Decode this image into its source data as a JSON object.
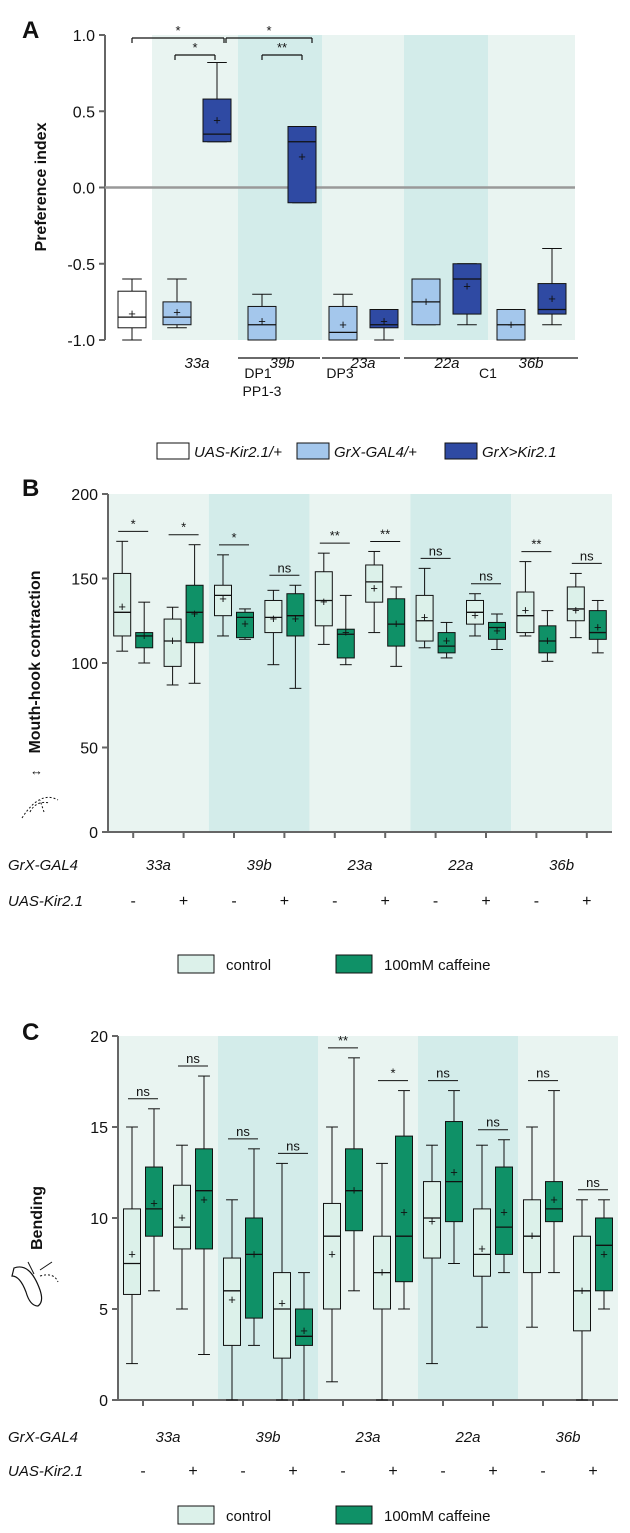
{
  "colors": {
    "band_light": "#e9f4f1",
    "band_dark": "#d3ecea",
    "a_white": "#ffffff",
    "a_light": "#a4c7ec",
    "a_dark": "#2f4aa3",
    "control": "#dcf1ea",
    "caffeine": "#0f9167",
    "axis": "#666666",
    "zero": "#999999"
  },
  "chart_data": [
    {
      "panel": "A",
      "type": "box",
      "ylabel": "Preference index",
      "yticks": [
        "1.0",
        "0.5",
        "0.0",
        "-0.5",
        "-1.0"
      ],
      "ylim": [
        -1.0,
        1.0
      ],
      "reference_line": 0.0,
      "categories": [
        "33a",
        "39b",
        "23a",
        "22a",
        "36b"
      ],
      "groups": [
        {
          "name": "UAS-Kir2.1/+",
          "color": "a_white",
          "min": -1.0,
          "q1": -0.92,
          "median": -0.85,
          "q3": -0.68,
          "max": -0.6,
          "mean": -0.83
        },
        {
          "cat": "33a",
          "name": "GrX-GAL4/+",
          "color": "a_light",
          "min": -0.92,
          "q1": -0.9,
          "median": -0.85,
          "q3": -0.75,
          "max": -0.6,
          "mean": -0.82
        },
        {
          "cat": "33a",
          "name": "GrX>Kir2.1",
          "color": "a_dark",
          "min": 0.3,
          "q1": 0.3,
          "median": 0.35,
          "q3": 0.58,
          "max": 0.82,
          "mean": 0.44
        },
        {
          "cat": "39b",
          "name": "GrX-GAL4/+",
          "color": "a_light",
          "min": -1.0,
          "q1": -1.0,
          "median": -0.9,
          "q3": -0.78,
          "max": -0.7,
          "mean": -0.88
        },
        {
          "cat": "39b",
          "name": "GrX>Kir2.1",
          "color": "a_dark",
          "min": -0.1,
          "q1": -0.1,
          "median": 0.3,
          "q3": 0.4,
          "max": 0.4,
          "mean": 0.2
        },
        {
          "cat": "23a",
          "name": "GrX-GAL4/+",
          "color": "a_light",
          "min": -1.0,
          "q1": -1.0,
          "median": -0.95,
          "q3": -0.78,
          "max": -0.7,
          "mean": -0.9
        },
        {
          "cat": "23a",
          "name": "GrX>Kir2.1",
          "color": "a_dark",
          "min": -1.0,
          "q1": -0.92,
          "median": -0.9,
          "q3": -0.8,
          "max": -0.8,
          "mean": -0.88
        },
        {
          "cat": "22a",
          "name": "GrX-GAL4/+",
          "color": "a_light",
          "min": -0.9,
          "q1": -0.9,
          "median": -0.75,
          "q3": -0.6,
          "max": -0.6,
          "mean": -0.75
        },
        {
          "cat": "22a",
          "name": "GrX>Kir2.1",
          "color": "a_dark",
          "min": -0.9,
          "q1": -0.83,
          "median": -0.6,
          "q3": -0.5,
          "max": -0.5,
          "mean": -0.65
        },
        {
          "cat": "36b",
          "name": "GrX-GAL4/+",
          "color": "a_light",
          "min": -1.0,
          "q1": -1.0,
          "median": -0.9,
          "q3": -0.8,
          "max": -0.8,
          "mean": -0.9
        },
        {
          "cat": "36b",
          "name": "GrX>Kir2.1",
          "color": "a_dark",
          "min": -0.9,
          "q1": -0.83,
          "median": -0.8,
          "q3": -0.63,
          "max": -0.4,
          "mean": -0.73
        }
      ],
      "neuron_groups": [
        "DP1",
        "PP1-3",
        "DP3",
        "C1"
      ],
      "significance": [
        "*",
        "*",
        "*",
        "**"
      ],
      "legend": [
        "UAS-Kir2.1/+",
        "GrX-GAL4/+",
        "GrX>Kir2.1"
      ]
    },
    {
      "panel": "B",
      "type": "box",
      "ylabel": "Mouth-hook contraction",
      "yticks": [
        "200",
        "150",
        "100",
        "50",
        "0"
      ],
      "ylim": [
        0,
        200
      ],
      "row_labels": {
        "gal4": "GrX-GAL4",
        "kir": "UAS-Kir2.1"
      },
      "categories": [
        "33a",
        "39b",
        "23a",
        "22a",
        "36b"
      ],
      "signs": [
        "-",
        "+"
      ],
      "legend": [
        "control",
        "100mM caffeine"
      ],
      "significance": [
        "*",
        "*",
        "*",
        "ns",
        "**",
        "**",
        "ns",
        "ns",
        "**",
        "ns"
      ],
      "boxes": [
        {
          "cat": "33a",
          "kir": "-",
          "control": {
            "min": 107,
            "q1": 116,
            "median": 130,
            "q3": 153,
            "max": 172,
            "mean": 133
          },
          "caffeine": {
            "min": 100,
            "q1": 109,
            "median": 116,
            "q3": 118,
            "max": 136,
            "mean": 116
          }
        },
        {
          "cat": "33a",
          "kir": "+",
          "control": {
            "min": 87,
            "q1": 98,
            "median": 113,
            "q3": 126,
            "max": 133,
            "mean": 113
          },
          "caffeine": {
            "min": 88,
            "q1": 112,
            "median": 130,
            "q3": 146,
            "max": 170,
            "mean": 129
          }
        },
        {
          "cat": "39b",
          "kir": "-",
          "control": {
            "min": 116,
            "q1": 128,
            "median": 140,
            "q3": 146,
            "max": 164,
            "mean": 138
          },
          "caffeine": {
            "min": 114,
            "q1": 115,
            "median": 127,
            "q3": 130,
            "max": 132,
            "mean": 123
          }
        },
        {
          "cat": "39b",
          "kir": "+",
          "control": {
            "min": 99,
            "q1": 118,
            "median": 127,
            "q3": 137,
            "max": 143,
            "mean": 126
          },
          "caffeine": {
            "min": 85,
            "q1": 116,
            "median": 128,
            "q3": 141,
            "max": 146,
            "mean": 126
          }
        },
        {
          "cat": "23a",
          "kir": "-",
          "control": {
            "min": 111,
            "q1": 122,
            "median": 137,
            "q3": 154,
            "max": 165,
            "mean": 136
          },
          "caffeine": {
            "min": 99,
            "q1": 103,
            "median": 117,
            "q3": 120,
            "max": 140,
            "mean": 118
          }
        },
        {
          "cat": "23a",
          "kir": "+",
          "control": {
            "min": 118,
            "q1": 136,
            "median": 148,
            "q3": 158,
            "max": 166,
            "mean": 144
          },
          "caffeine": {
            "min": 98,
            "q1": 110,
            "median": 123,
            "q3": 138,
            "max": 145,
            "mean": 123
          }
        },
        {
          "cat": "22a",
          "kir": "-",
          "control": {
            "min": 109,
            "q1": 113,
            "median": 125,
            "q3": 140,
            "max": 156,
            "mean": 127
          },
          "caffeine": {
            "min": 103,
            "q1": 106,
            "median": 110,
            "q3": 118,
            "max": 124,
            "mean": 113
          }
        },
        {
          "cat": "22a",
          "kir": "+",
          "control": {
            "min": 116,
            "q1": 123,
            "median": 130,
            "q3": 137,
            "max": 141,
            "mean": 128
          },
          "caffeine": {
            "min": 108,
            "q1": 114,
            "median": 121,
            "q3": 124,
            "max": 129,
            "mean": 119
          }
        },
        {
          "cat": "36b",
          "kir": "-",
          "control": {
            "min": 116,
            "q1": 118,
            "median": 128,
            "q3": 142,
            "max": 160,
            "mean": 131
          },
          "caffeine": {
            "min": 101,
            "q1": 106,
            "median": 113,
            "q3": 122,
            "max": 131,
            "mean": 113
          }
        },
        {
          "cat": "36b",
          "kir": "+",
          "control": {
            "min": 115,
            "q1": 125,
            "median": 132,
            "q3": 145,
            "max": 153,
            "mean": 131
          },
          "caffeine": {
            "min": 106,
            "q1": 114,
            "median": 118,
            "q3": 131,
            "max": 137,
            "mean": 121
          }
        }
      ]
    },
    {
      "panel": "C",
      "type": "box",
      "ylabel": "Bending",
      "yticks": [
        "20",
        "15",
        "10",
        "5",
        "0"
      ],
      "ylim": [
        0,
        20
      ],
      "row_labels": {
        "gal4": "GrX-GAL4",
        "kir": "UAS-Kir2.1"
      },
      "categories": [
        "33a",
        "39b",
        "23a",
        "22a",
        "36b"
      ],
      "signs": [
        "-",
        "+"
      ],
      "legend": [
        "control",
        "100mM caffeine"
      ],
      "significance": [
        "ns",
        "ns",
        "ns",
        "ns",
        "**",
        "*",
        "ns",
        "ns",
        "ns",
        "ns"
      ],
      "boxes": [
        {
          "cat": "33a",
          "kir": "-",
          "control": {
            "min": 2,
            "q1": 5.8,
            "median": 7.5,
            "q3": 10.5,
            "max": 15,
            "mean": 8
          },
          "caffeine": {
            "min": 6,
            "q1": 9,
            "median": 10.5,
            "q3": 12.8,
            "max": 16,
            "mean": 10.8
          }
        },
        {
          "cat": "33a",
          "kir": "+",
          "control": {
            "min": 5,
            "q1": 8.3,
            "median": 9.5,
            "q3": 11.8,
            "max": 14,
            "mean": 10
          },
          "caffeine": {
            "min": 2.5,
            "q1": 8.3,
            "median": 11.5,
            "q3": 13.8,
            "max": 17.8,
            "mean": 11
          }
        },
        {
          "cat": "39b",
          "kir": "-",
          "control": {
            "min": 0,
            "q1": 3,
            "median": 6,
            "q3": 7.8,
            "max": 11,
            "mean": 5.5
          },
          "caffeine": {
            "min": 3,
            "q1": 4.5,
            "median": 8,
            "q3": 10,
            "max": 13.8,
            "mean": 8
          }
        },
        {
          "cat": "39b",
          "kir": "+",
          "control": {
            "min": 0,
            "q1": 2.3,
            "median": 5,
            "q3": 7,
            "max": 13,
            "mean": 5.3
          },
          "caffeine": {
            "min": 0,
            "q1": 3,
            "median": 3.5,
            "q3": 5,
            "max": 7,
            "mean": 3.8
          }
        },
        {
          "cat": "23a",
          "kir": "-",
          "control": {
            "min": 1,
            "q1": 5,
            "median": 9,
            "q3": 10.8,
            "max": 15,
            "mean": 8
          },
          "caffeine": {
            "min": 6,
            "q1": 9.3,
            "median": 11.5,
            "q3": 13.8,
            "max": 18.8,
            "mean": 11.5
          }
        },
        {
          "cat": "23a",
          "kir": "+",
          "control": {
            "min": 0,
            "q1": 5,
            "median": 7,
            "q3": 9,
            "max": 13,
            "mean": 7
          },
          "caffeine": {
            "min": 5,
            "q1": 6.5,
            "median": 9,
            "q3": 14.5,
            "max": 17,
            "mean": 10.3
          }
        },
        {
          "cat": "22a",
          "kir": "-",
          "control": {
            "min": 2,
            "q1": 7.8,
            "median": 10,
            "q3": 12,
            "max": 14,
            "mean": 9.8
          },
          "caffeine": {
            "min": 7.5,
            "q1": 9.8,
            "median": 12,
            "q3": 15.3,
            "max": 17,
            "mean": 12.5
          }
        },
        {
          "cat": "22a",
          "kir": "+",
          "control": {
            "min": 4,
            "q1": 6.8,
            "median": 8,
            "q3": 10.5,
            "max": 14,
            "mean": 8.3
          },
          "caffeine": {
            "min": 7,
            "q1": 8,
            "median": 9.5,
            "q3": 12.8,
            "max": 14.3,
            "mean": 10.3
          }
        },
        {
          "cat": "36b",
          "kir": "-",
          "control": {
            "min": 4,
            "q1": 7,
            "median": 9,
            "q3": 11,
            "max": 15,
            "mean": 9
          },
          "caffeine": {
            "min": 7,
            "q1": 9.8,
            "median": 10.5,
            "q3": 12,
            "max": 17,
            "mean": 11
          }
        },
        {
          "cat": "36b",
          "kir": "+",
          "control": {
            "min": 0,
            "q1": 3.8,
            "median": 6,
            "q3": 9,
            "max": 11,
            "mean": 6
          },
          "caffeine": {
            "min": 5,
            "q1": 6,
            "median": 8.5,
            "q3": 10,
            "max": 11,
            "mean": 8
          }
        }
      ]
    }
  ],
  "labels": {
    "panel_a": "A",
    "panel_b": "B",
    "panel_c": "C",
    "a_legend_1": "UAS-Kir2.1/+",
    "a_legend_2": "GrX-GAL4/+",
    "a_legend_3": "GrX>Kir2.1",
    "bc_legend_1": "control",
    "bc_legend_2": "100mM caffeine"
  }
}
